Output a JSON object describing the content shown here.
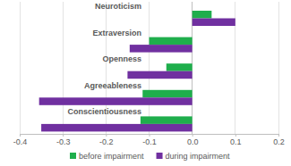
{
  "chart_data": {
    "type": "bar",
    "orientation": "horizontal",
    "categories": [
      "Neuroticism",
      "Extraversion",
      "Openness",
      "Agreeableness",
      "Conscientiousness"
    ],
    "series": [
      {
        "name": "before impairment",
        "color": "#1fae4c",
        "values": [
          0.045,
          -0.1,
          -0.06,
          -0.115,
          -0.12
        ]
      },
      {
        "name": "during impairment",
        "color": "#7030a0",
        "values": [
          0.1,
          -0.145,
          -0.15,
          -0.355,
          -0.35
        ]
      }
    ],
    "xlim": [
      -0.4,
      0.2
    ],
    "xticks": [
      -0.4,
      -0.3,
      -0.2,
      -0.1,
      {
        "value": 0,
        "label": "0.0"
      },
      0.1,
      0.2
    ],
    "grid": true,
    "legend": "bottom"
  }
}
